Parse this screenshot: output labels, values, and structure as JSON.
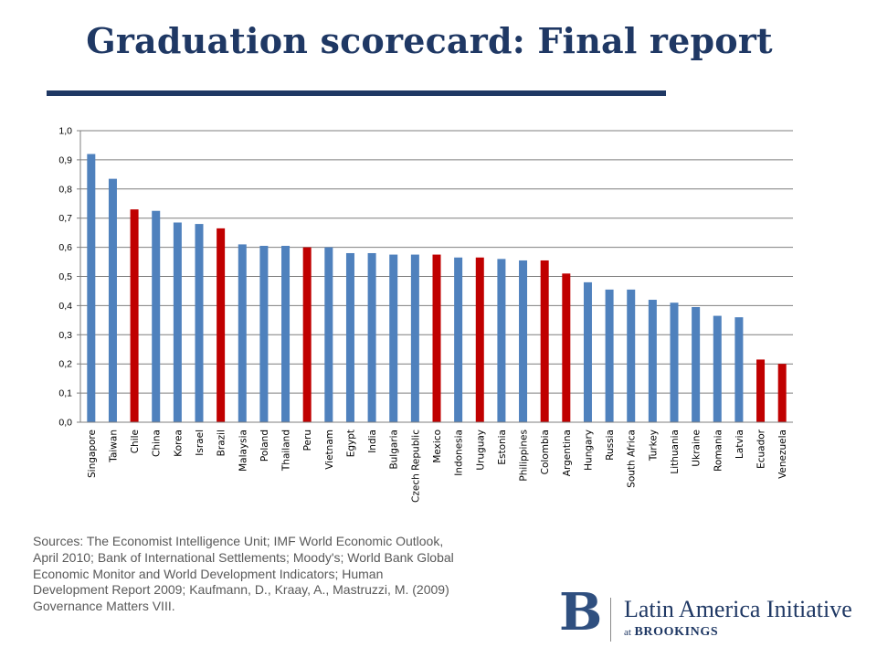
{
  "slide": {
    "title": "Graduation scorecard: Final report",
    "sources": "Sources: The Economist Intelligence Unit; IMF World Economic Outlook,\nApril 2010; Bank of International Settlements; Moody's; World Bank Global\nEconomic Monitor and World Development Indicators; Human\nDevelopment Report 2009; Kaufmann, D., Kraay, A., Mastruzzi, M. (2009)\nGovernance Matters VIII."
  },
  "logo": {
    "mark": "B",
    "name": "Latin America Initiative",
    "at": "at",
    "org": "BROOKINGS"
  },
  "colors": {
    "title": "#1f3864",
    "bar_default": "#4f81bd",
    "bar_highlight": "#c00000",
    "gridline": "#7f7f7f"
  },
  "chart_data": {
    "type": "bar",
    "title": "",
    "xlabel": "",
    "ylabel": "",
    "ylim": [
      0,
      1.0
    ],
    "yticks": [
      "0,0",
      "0,1",
      "0,2",
      "0,3",
      "0,4",
      "0,5",
      "0,6",
      "0,7",
      "0,8",
      "0,9",
      "1,0"
    ],
    "grid": true,
    "categories": [
      "Singapore",
      "Taiwan",
      "Chile",
      "China",
      "Korea",
      "Israel",
      "Brazil",
      "Malaysia",
      "Poland",
      "Thailand",
      "Peru",
      "Vietnam",
      "Egypt",
      "India",
      "Bulgaria",
      "Czech Republic",
      "Mexico",
      "Indonesia",
      "Uruguay",
      "Estonia",
      "Philippines",
      "Colombia",
      "Argentina",
      "Hungary",
      "Russia",
      "South Africa",
      "Turkey",
      "Lithuania",
      "Ukraine",
      "Romania",
      "Latvia",
      "Ecuador",
      "Venezuela"
    ],
    "values": [
      0.92,
      0.835,
      0.73,
      0.725,
      0.685,
      0.68,
      0.665,
      0.61,
      0.605,
      0.605,
      0.6,
      0.6,
      0.58,
      0.58,
      0.575,
      0.575,
      0.575,
      0.565,
      0.565,
      0.56,
      0.555,
      0.555,
      0.51,
      0.48,
      0.455,
      0.455,
      0.42,
      0.41,
      0.395,
      0.365,
      0.36,
      0.215,
      0.2
    ],
    "highlighted": [
      "Chile",
      "Brazil",
      "Peru",
      "Mexico",
      "Uruguay",
      "Colombia",
      "Argentina",
      "Ecuador",
      "Venezuela"
    ]
  }
}
